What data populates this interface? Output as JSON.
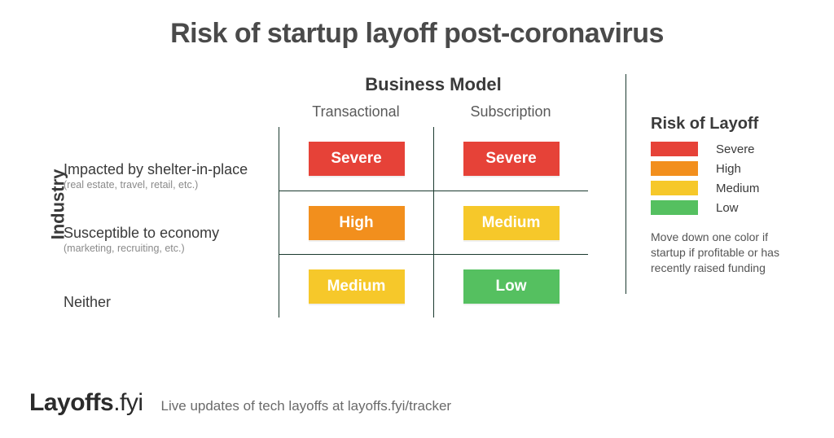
{
  "title": {
    "text": "Risk of startup layoff post-coronavirus",
    "fontsize": 34,
    "color": "#4a4a4a"
  },
  "axes": {
    "row_label": "Industry",
    "col_label": "Business Model",
    "axis_fontsize": 22
  },
  "columns": [
    "Transactional",
    "Subscription"
  ],
  "rows": [
    {
      "primary": "Impacted by shelter-in-place",
      "secondary": "(real estate, travel, retail, etc.)"
    },
    {
      "primary": "Susceptible to economy",
      "secondary": "(marketing, recruiting, etc.)"
    },
    {
      "primary": "Neither",
      "secondary": ""
    }
  ],
  "matrix": {
    "type": "heatmap",
    "cells": [
      [
        "Severe",
        "Severe"
      ],
      [
        "High",
        "Medium"
      ],
      [
        "Medium",
        "Low"
      ]
    ],
    "colors": {
      "Severe": "#e64238",
      "High": "#f28f1d",
      "Medium": "#f6c82a",
      "Low": "#55c060"
    },
    "badge_text_color": "#ffffff",
    "gridline_color": "#1b3a2f"
  },
  "legend": {
    "title": "Risk of Layoff",
    "title_fontsize": 20,
    "items": [
      {
        "label": "Severe",
        "color": "#e64238"
      },
      {
        "label": "High",
        "color": "#f28f1d"
      },
      {
        "label": "Medium",
        "color": "#f6c82a"
      },
      {
        "label": "Low",
        "color": "#55c060"
      }
    ],
    "note": "Move down one color if startup if profitable or has recently raised funding"
  },
  "footer": {
    "brand_heavy": "Layoffs",
    "brand_thin": ".fyi",
    "tagline": "Live updates of tech layoffs at layoffs.fyi/tracker"
  },
  "background_color": "#ffffff"
}
